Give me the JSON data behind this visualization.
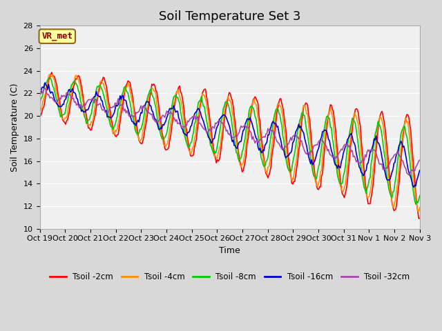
{
  "title": "Soil Temperature Set 3",
  "xlabel": "Time",
  "ylabel": "Soil Temperature (C)",
  "ylim": [
    10,
    28
  ],
  "yticks": [
    10,
    12,
    14,
    16,
    18,
    20,
    22,
    24,
    26,
    28
  ],
  "xtick_labels": [
    "Oct 19",
    "Oct 20",
    "Oct 21",
    "Oct 22",
    "Oct 23",
    "Oct 24",
    "Oct 25",
    "Oct 26",
    "Oct 27",
    "Oct 28",
    "Oct 29",
    "Oct 30",
    "Oct 31",
    "Nov 1",
    "Nov 2",
    "Nov 3"
  ],
  "series": [
    {
      "label": "Tsoil -2cm",
      "color": "#FF0000"
    },
    {
      "label": "Tsoil -4cm",
      "color": "#FF8C00"
    },
    {
      "label": "Tsoil -8cm",
      "color": "#00CC00"
    },
    {
      "label": "Tsoil -16cm",
      "color": "#0000CC"
    },
    {
      "label": "Tsoil -32cm",
      "color": "#AA44AA"
    }
  ],
  "annotation_text": "VR_met",
  "annotation_color": "#8B0000",
  "annotation_bg": "#FFFFA0",
  "annotation_border": "#8B6914",
  "title_fontsize": 13,
  "label_fontsize": 9,
  "tick_fontsize": 8
}
